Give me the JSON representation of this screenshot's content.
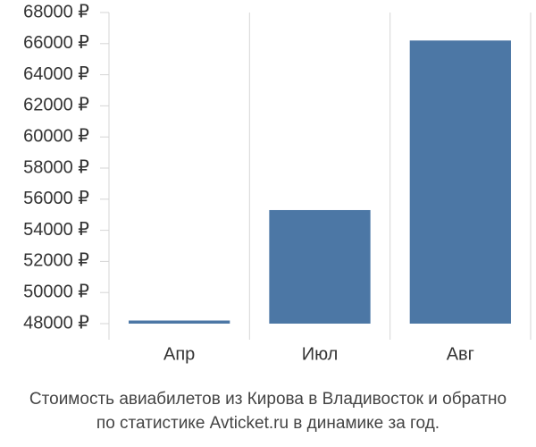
{
  "chart_data": {
    "type": "bar",
    "title": [
      "Стоимость авиабилетов из Кирова в Владивосток и обратно",
      "по статистике Avticket.ru в динамике за год."
    ],
    "categories": [
      "Апр",
      "Июл",
      "Авг"
    ],
    "values": [
      48200,
      55300,
      66200
    ],
    "color": "#4c77a5",
    "ylim": [
      48000,
      68000
    ],
    "yticks": [
      {
        "value": 48000,
        "label": "48000 ₽"
      },
      {
        "value": 50000,
        "label": "50000 ₽"
      },
      {
        "value": 52000,
        "label": "52000 ₽"
      },
      {
        "value": 54000,
        "label": "54000 ₽"
      },
      {
        "value": 56000,
        "label": "56000 ₽"
      },
      {
        "value": 58000,
        "label": "58000 ₽"
      },
      {
        "value": 60000,
        "label": "60000 ₽"
      },
      {
        "value": 62000,
        "label": "62000 ₽"
      },
      {
        "value": 64000,
        "label": "64000 ₽"
      },
      {
        "value": 66000,
        "label": "66000 ₽"
      },
      {
        "value": 68000,
        "label": "68000 ₽"
      }
    ]
  }
}
